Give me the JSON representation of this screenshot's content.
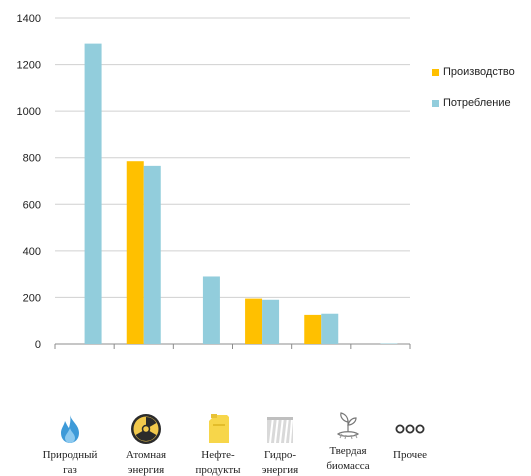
{
  "colors": {
    "production": "#FFC000",
    "consumption": "#92CDDC"
  },
  "chart_data": {
    "type": "bar",
    "categories": [
      "Природный газ",
      "Атомная энергия",
      "Нефте-продукты",
      "Гидро-энергия",
      "Твердая биомасса",
      "Прочее"
    ],
    "series": [
      {
        "name": "Производство",
        "values": [
          0,
          785,
          0,
          195,
          125,
          0
        ],
        "color": "#FFC000"
      },
      {
        "name": "Потребление",
        "values": [
          1290,
          765,
          290,
          190,
          130,
          2
        ],
        "color": "#92CDDC"
      }
    ],
    "ylim": [
      0,
      1400
    ],
    "yticks": [
      "0",
      "200",
      "400",
      "600",
      "800",
      "1000",
      "1200",
      "1400"
    ],
    "grid": true,
    "legend_position": "right"
  },
  "icons": [
    {
      "name": "flame-icon",
      "label_lines": [
        "Природный",
        "газ"
      ]
    },
    {
      "name": "radiation-icon",
      "label_lines": [
        "Атомная",
        "энергия"
      ]
    },
    {
      "name": "oil-canister-icon",
      "label_lines": [
        "Нефте-",
        "продукты"
      ]
    },
    {
      "name": "waterfall-icon",
      "label_lines": [
        "Гидро-",
        "энергия"
      ]
    },
    {
      "name": "sprout-icon",
      "label_lines": [
        "Твердая",
        "биомасса"
      ]
    },
    {
      "name": "dots-icon",
      "label_lines": [
        "Прочее"
      ]
    }
  ]
}
